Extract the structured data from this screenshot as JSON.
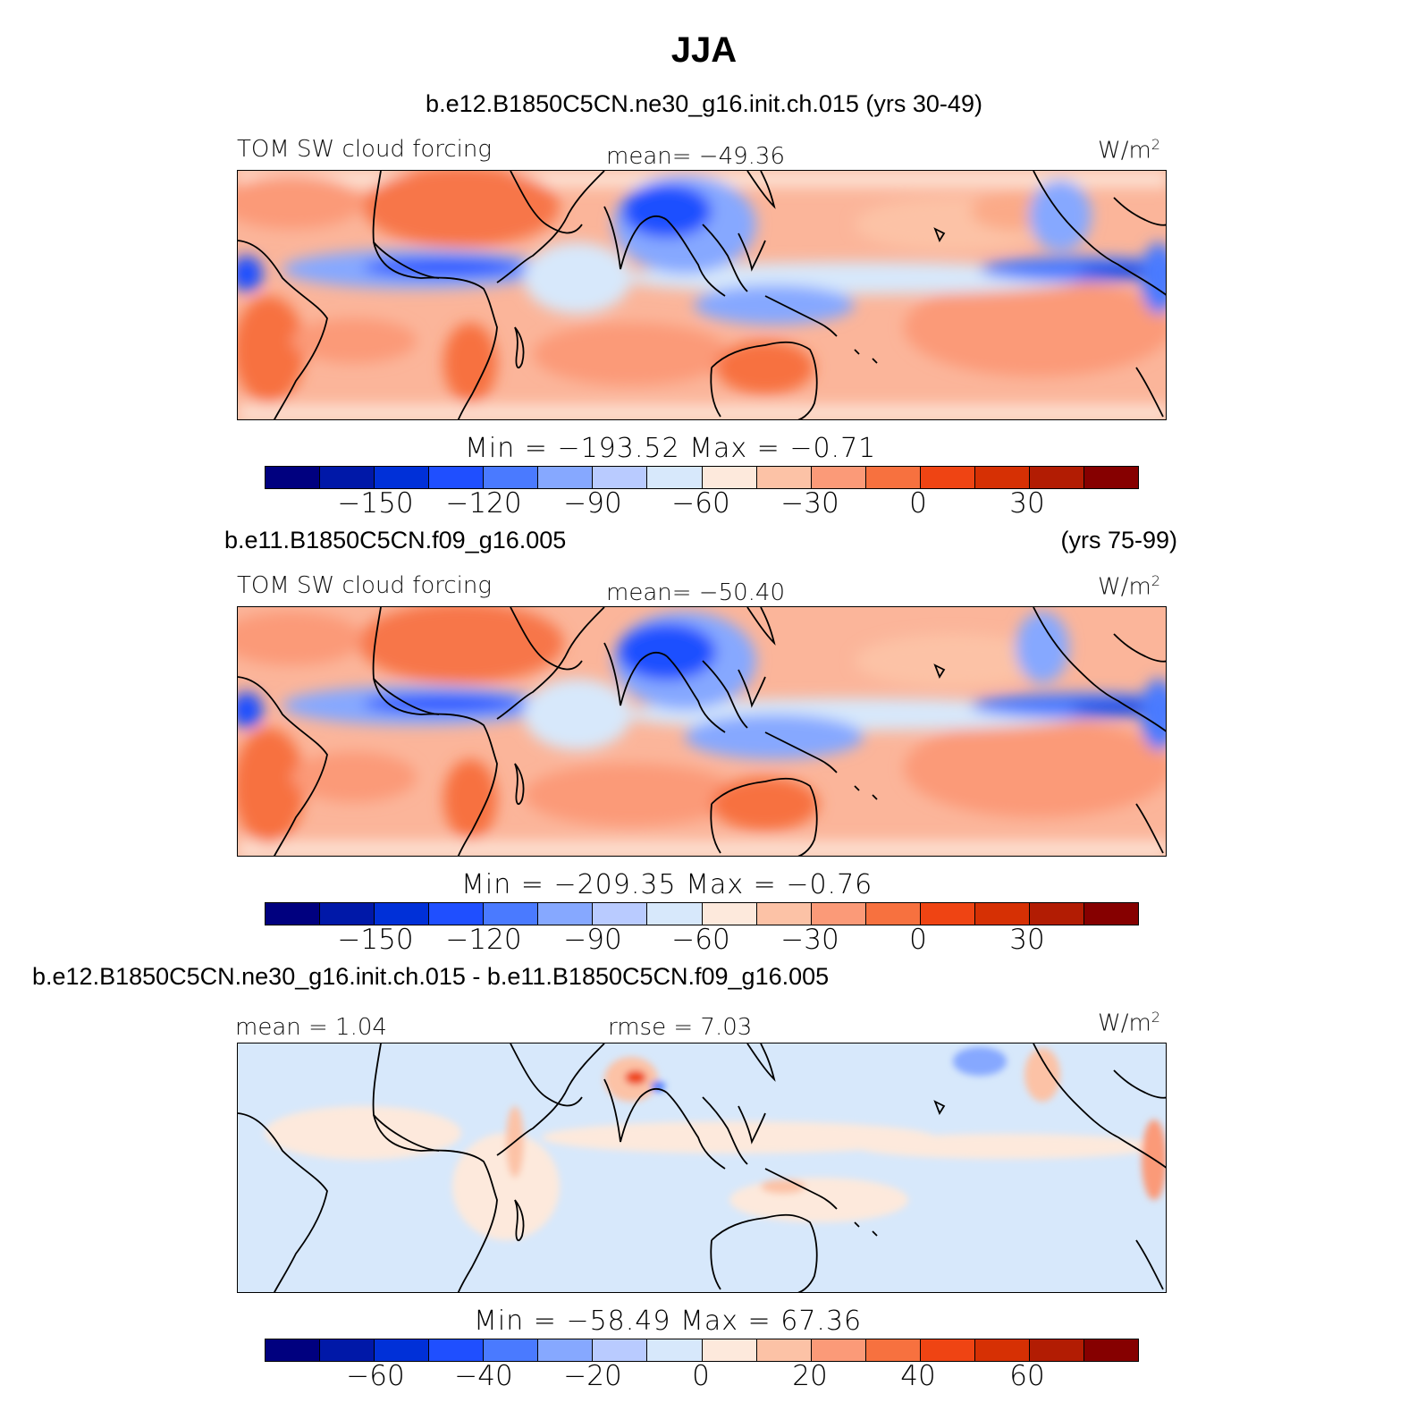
{
  "title": "JJA",
  "units": "W/m",
  "units_sup": "2",
  "field_label": "TOM SW cloud forcing",
  "panels": [
    {
      "case_title": "b.e12.B1850C5CN.ne30_g16.init.ch.015 (yrs 30-49)",
      "years": "",
      "left_label": "TOM SW cloud forcing",
      "center_label": "mean= −49.36",
      "minmax": "Min  =  −193.52  Max  =   −0.71",
      "ticks": [
        "−150",
        "−120",
        "−90",
        "−60",
        "−30",
        "0",
        "30"
      ]
    },
    {
      "case_title": "b.e11.B1850C5CN.f09_g16.005",
      "years": "(yrs 75-99)",
      "left_label": "TOM SW cloud forcing",
      "center_label": "mean= −50.40",
      "minmax": "Min  =  −209.35  Max  =   −0.76",
      "ticks": [
        "−150",
        "−120",
        "−90",
        "−60",
        "−30",
        "0",
        "30"
      ]
    },
    {
      "case_title": "b.e12.B1850C5CN.ne30_g16.init.ch.015 - b.e11.B1850C5CN.f09_g16.005",
      "years": "",
      "left_label": "mean  =    1.04",
      "center_label": "rmse  =    7.03",
      "minmax": "Min  =  −58.49  Max  =   67.36",
      "ticks": [
        "−60",
        "−40",
        "−20",
        "0",
        "20",
        "40",
        "60"
      ]
    }
  ],
  "colorbar_colors": [
    "#00007f",
    "#0018a8",
    "#0030d8",
    "#1f4fff",
    "#4a7aff",
    "#86a8ff",
    "#b9cbff",
    "#d7e8fb",
    "#fde9dc",
    "#fcc2a6",
    "#fb9a78",
    "#f7713f",
    "#ef4413",
    "#d63004",
    "#b21c03",
    "#860000"
  ],
  "chart_data": {
    "type": "map",
    "projection": "cylindrical equidistant, tropics",
    "colorbar_ranges": [
      {
        "panel": 1,
        "tick_labels": [
          -150,
          -120,
          -90,
          -60,
          -30,
          0,
          30
        ]
      },
      {
        "panel": 2,
        "tick_labels": [
          -150,
          -120,
          -90,
          -60,
          -30,
          0,
          30
        ]
      },
      {
        "panel": 3,
        "tick_labels": [
          -60,
          -40,
          -20,
          0,
          20,
          40,
          60
        ]
      }
    ]
  }
}
